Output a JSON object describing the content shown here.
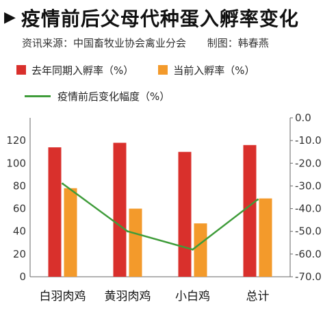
{
  "header": {
    "arrow": "▶",
    "title": "疫情前后父母代种蛋入孵率变化",
    "source": "资讯来源：中国畜牧业协会禽业分会",
    "maker": "制图：韩春燕"
  },
  "colors": {
    "last_year": "#d9302c",
    "current": "#f39a2b",
    "change": "#3f9c3a",
    "axis": "#666666"
  },
  "chart_data": {
    "type": "bar",
    "categories": [
      "白羽肉鸡",
      "黄羽肉鸡",
      "小白鸡",
      "总计"
    ],
    "series": [
      {
        "name": "去年同期入孵率（%）",
        "values": [
          114,
          118,
          110,
          116
        ],
        "axis": "left",
        "kind": "bar"
      },
      {
        "name": "当前入孵率（%）",
        "values": [
          78,
          60,
          47,
          69
        ],
        "axis": "left",
        "kind": "bar"
      },
      {
        "name": "疫情前后变化幅度（%）",
        "values": [
          -29,
          -50,
          -58,
          -36
        ],
        "axis": "right",
        "kind": "line"
      }
    ],
    "y_left": {
      "ticks": [
        "0",
        "20",
        "40",
        "60",
        "80",
        "100",
        "120"
      ],
      "range": [
        0,
        140
      ]
    },
    "y_right": {
      "ticks": [
        "0.0",
        "-10.0",
        "-20.0",
        "-30.0",
        "-40.0",
        "-50.0",
        "-60.0",
        "-70.0"
      ],
      "range": [
        0,
        -70
      ]
    },
    "grid": false,
    "legend_position": "top-left"
  }
}
